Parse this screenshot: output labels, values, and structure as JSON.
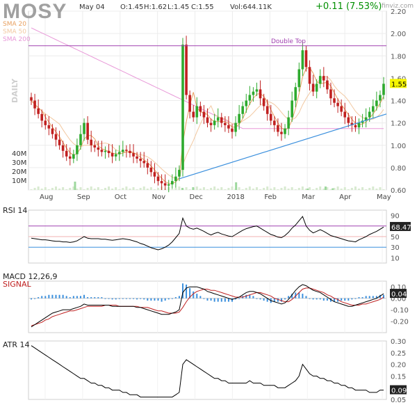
{
  "header": {
    "ticker": "MOSY",
    "date": "May 04",
    "open": "O:1.45",
    "high": "H:1.62",
    "low": "L:1.45",
    "close": "C:1.55",
    "volume": "Vol:644.11K",
    "change": "+0.11 (7.53%)",
    "brand": "finviz.com",
    "daily_label": "DAILY"
  },
  "legend": {
    "sma20": "SMA 20",
    "sma50": "SMA 50",
    "sma200": "SMA 200"
  },
  "colors": {
    "up": "#2eaa2e",
    "down": "#c02020",
    "sma20": "#e8a060",
    "sma50": "#f2c8a0",
    "sma200": "#e898d8",
    "trendline": "#3a8fdd",
    "double_top": "#a040b0",
    "macd": "#000000",
    "signal": "#c02020",
    "histogram": "#3a8fdd",
    "price_tag_bg": "#f5f500"
  },
  "chart_data": [
    {
      "type": "candlestick",
      "title": "MOSY",
      "subtitle": "DAILY",
      "x": [
        "Aug",
        "Sep",
        "Oct",
        "Nov",
        "Dec",
        "2018",
        "Feb",
        "Mar",
        "Apr",
        "May"
      ],
      "ylim": [
        0.6,
        2.2
      ],
      "yticks": [
        0.6,
        0.8,
        1.0,
        1.2,
        1.4,
        1.6,
        1.8,
        2.0,
        2.2
      ],
      "last_price": "1.55",
      "annotation": "Double Top",
      "double_top_level": 1.89,
      "trendline": [
        [
          0.7,
          1.28
        ]
      ],
      "series": [
        {
          "name": "SMA 20"
        },
        {
          "name": "SMA 50"
        },
        {
          "name": "SMA 200"
        }
      ],
      "close_path": [
        1.4,
        1.33,
        1.28,
        1.22,
        1.18,
        1.15,
        1.1,
        1.05,
        1.0,
        0.95,
        0.9,
        0.88,
        0.92,
        1.0,
        1.1,
        1.2,
        1.05,
        1.0,
        0.98,
        0.96,
        0.94,
        0.95,
        0.93,
        0.9,
        0.92,
        0.94,
        0.96,
        0.95,
        0.93,
        0.9,
        0.88,
        0.86,
        0.84,
        0.8,
        0.76,
        0.72,
        0.68,
        0.66,
        0.64,
        0.65,
        0.68,
        0.72,
        0.78,
        1.9,
        1.45,
        1.3,
        1.25,
        1.35,
        1.3,
        1.25,
        1.2,
        1.18,
        1.22,
        1.25,
        1.2,
        1.18,
        1.15,
        1.12,
        1.2,
        1.28,
        1.35,
        1.4,
        1.45,
        1.48,
        1.5,
        1.42,
        1.35,
        1.28,
        1.22,
        1.18,
        1.12,
        1.1,
        1.15,
        1.25,
        1.4,
        1.52,
        1.68,
        1.85,
        1.7,
        1.55,
        1.48,
        1.55,
        1.62,
        1.58,
        1.5,
        1.42,
        1.38,
        1.35,
        1.3,
        1.25,
        1.2,
        1.18,
        1.16,
        1.2,
        1.22,
        1.25,
        1.3,
        1.35,
        1.4,
        1.45,
        1.55
      ],
      "volume": {
        "ticks": [
          "10M",
          "20M",
          "30M",
          "40M"
        ],
        "spikes": [
          0.6,
          0.15,
          0.2,
          0.55,
          0.1,
          0.25,
          0.12
        ]
      }
    },
    {
      "type": "line",
      "title": "RSI 14",
      "ylim": [
        0,
        100
      ],
      "yticks": [
        10,
        30,
        50,
        70,
        90
      ],
      "levels": [
        30,
        70
      ],
      "last_value": "68.47",
      "values": [
        47,
        46,
        45,
        44,
        44,
        43,
        42,
        41,
        41,
        40,
        40,
        39,
        40,
        42,
        46,
        50,
        47,
        46,
        46,
        46,
        45,
        45,
        44,
        43,
        44,
        45,
        46,
        45,
        44,
        42,
        40,
        37,
        35,
        32,
        29,
        27,
        25,
        27,
        30,
        34,
        40,
        48,
        56,
        85,
        70,
        66,
        64,
        66,
        63,
        60,
        56,
        53,
        56,
        58,
        55,
        53,
        51,
        50,
        54,
        58,
        62,
        65,
        67,
        69,
        70,
        66,
        62,
        58,
        54,
        52,
        49,
        48,
        52,
        58,
        66,
        72,
        80,
        88,
        70,
        62,
        57,
        60,
        63,
        60,
        56,
        52,
        50,
        48,
        46,
        44,
        42,
        41,
        40,
        44,
        47,
        50,
        54,
        57,
        60,
        64,
        68
      ]
    },
    {
      "type": "line",
      "title": "MACD 12,26,9",
      "legend": [
        "MACD 12,26,9",
        "SIGNAL"
      ],
      "ylim": [
        -0.3,
        0.15
      ],
      "yticks": [
        -0.2,
        -0.1,
        0.0,
        0.1
      ],
      "last_value": "0.04",
      "macd": [
        -0.25,
        -0.23,
        -0.21,
        -0.19,
        -0.17,
        -0.15,
        -0.13,
        -0.12,
        -0.11,
        -0.1,
        -0.1,
        -0.1,
        -0.09,
        -0.08,
        -0.07,
        -0.05,
        -0.06,
        -0.06,
        -0.06,
        -0.06,
        -0.06,
        -0.06,
        -0.06,
        -0.07,
        -0.07,
        -0.07,
        -0.07,
        -0.07,
        -0.07,
        -0.07,
        -0.08,
        -0.08,
        -0.09,
        -0.1,
        -0.11,
        -0.12,
        -0.13,
        -0.14,
        -0.14,
        -0.14,
        -0.13,
        -0.12,
        -0.1,
        0.05,
        0.09,
        0.1,
        0.1,
        0.1,
        0.09,
        0.08,
        0.06,
        0.05,
        0.04,
        0.03,
        0.02,
        0.01,
        0.0,
        -0.01,
        0.0,
        0.01,
        0.03,
        0.05,
        0.06,
        0.06,
        0.05,
        0.04,
        0.02,
        0.0,
        -0.02,
        -0.03,
        -0.04,
        -0.05,
        -0.04,
        -0.01,
        0.03,
        0.07,
        0.1,
        0.12,
        0.11,
        0.09,
        0.07,
        0.06,
        0.05,
        0.03,
        0.01,
        -0.01,
        -0.03,
        -0.04,
        -0.05,
        -0.06,
        -0.07,
        -0.07,
        -0.06,
        -0.05,
        -0.04,
        -0.03,
        -0.02,
        -0.01,
        0.0,
        0.02,
        0.04
      ],
      "signal": [
        -0.24,
        -0.23,
        -0.22,
        -0.21,
        -0.19,
        -0.18,
        -0.16,
        -0.15,
        -0.14,
        -0.13,
        -0.12,
        -0.11,
        -0.11,
        -0.1,
        -0.09,
        -0.08,
        -0.07,
        -0.07,
        -0.07,
        -0.07,
        -0.07,
        -0.06,
        -0.06,
        -0.06,
        -0.06,
        -0.07,
        -0.07,
        -0.07,
        -0.07,
        -0.07,
        -0.07,
        -0.08,
        -0.08,
        -0.08,
        -0.09,
        -0.1,
        -0.11,
        -0.11,
        -0.12,
        -0.13,
        -0.13,
        -0.13,
        -0.12,
        -0.08,
        -0.03,
        0.01,
        0.04,
        0.06,
        0.07,
        0.08,
        0.08,
        0.07,
        0.07,
        0.06,
        0.05,
        0.04,
        0.03,
        0.02,
        0.01,
        0.01,
        0.01,
        0.02,
        0.03,
        0.04,
        0.05,
        0.05,
        0.04,
        0.03,
        0.02,
        0.0,
        -0.01,
        -0.02,
        -0.03,
        -0.03,
        -0.01,
        0.02,
        0.05,
        0.08,
        0.09,
        0.09,
        0.08,
        0.07,
        0.06,
        0.05,
        0.03,
        0.02,
        0.0,
        -0.01,
        -0.03,
        -0.04,
        -0.05,
        -0.06,
        -0.06,
        -0.06,
        -0.05,
        -0.05,
        -0.04,
        -0.03,
        -0.02,
        -0.01,
        0.01
      ]
    },
    {
      "type": "line",
      "title": "ATR 14",
      "ylim": [
        0.05,
        0.3
      ],
      "yticks": [
        0.05,
        0.1,
        0.15,
        0.2,
        0.25,
        0.3
      ],
      "last_value": "0.09",
      "values": [
        0.28,
        0.27,
        0.26,
        0.25,
        0.24,
        0.23,
        0.22,
        0.21,
        0.2,
        0.19,
        0.18,
        0.17,
        0.16,
        0.15,
        0.14,
        0.14,
        0.13,
        0.12,
        0.12,
        0.11,
        0.11,
        0.1,
        0.1,
        0.09,
        0.09,
        0.09,
        0.08,
        0.08,
        0.07,
        0.07,
        0.07,
        0.06,
        0.06,
        0.06,
        0.06,
        0.06,
        0.06,
        0.06,
        0.06,
        0.06,
        0.06,
        0.07,
        0.08,
        0.2,
        0.22,
        0.21,
        0.2,
        0.19,
        0.18,
        0.17,
        0.16,
        0.15,
        0.14,
        0.14,
        0.13,
        0.13,
        0.12,
        0.12,
        0.12,
        0.12,
        0.12,
        0.12,
        0.13,
        0.12,
        0.12,
        0.12,
        0.11,
        0.11,
        0.11,
        0.11,
        0.1,
        0.1,
        0.1,
        0.11,
        0.12,
        0.13,
        0.15,
        0.2,
        0.18,
        0.16,
        0.15,
        0.15,
        0.14,
        0.14,
        0.13,
        0.13,
        0.12,
        0.12,
        0.11,
        0.11,
        0.1,
        0.1,
        0.09,
        0.09,
        0.09,
        0.09,
        0.08,
        0.08,
        0.08,
        0.09,
        0.09
      ]
    }
  ]
}
